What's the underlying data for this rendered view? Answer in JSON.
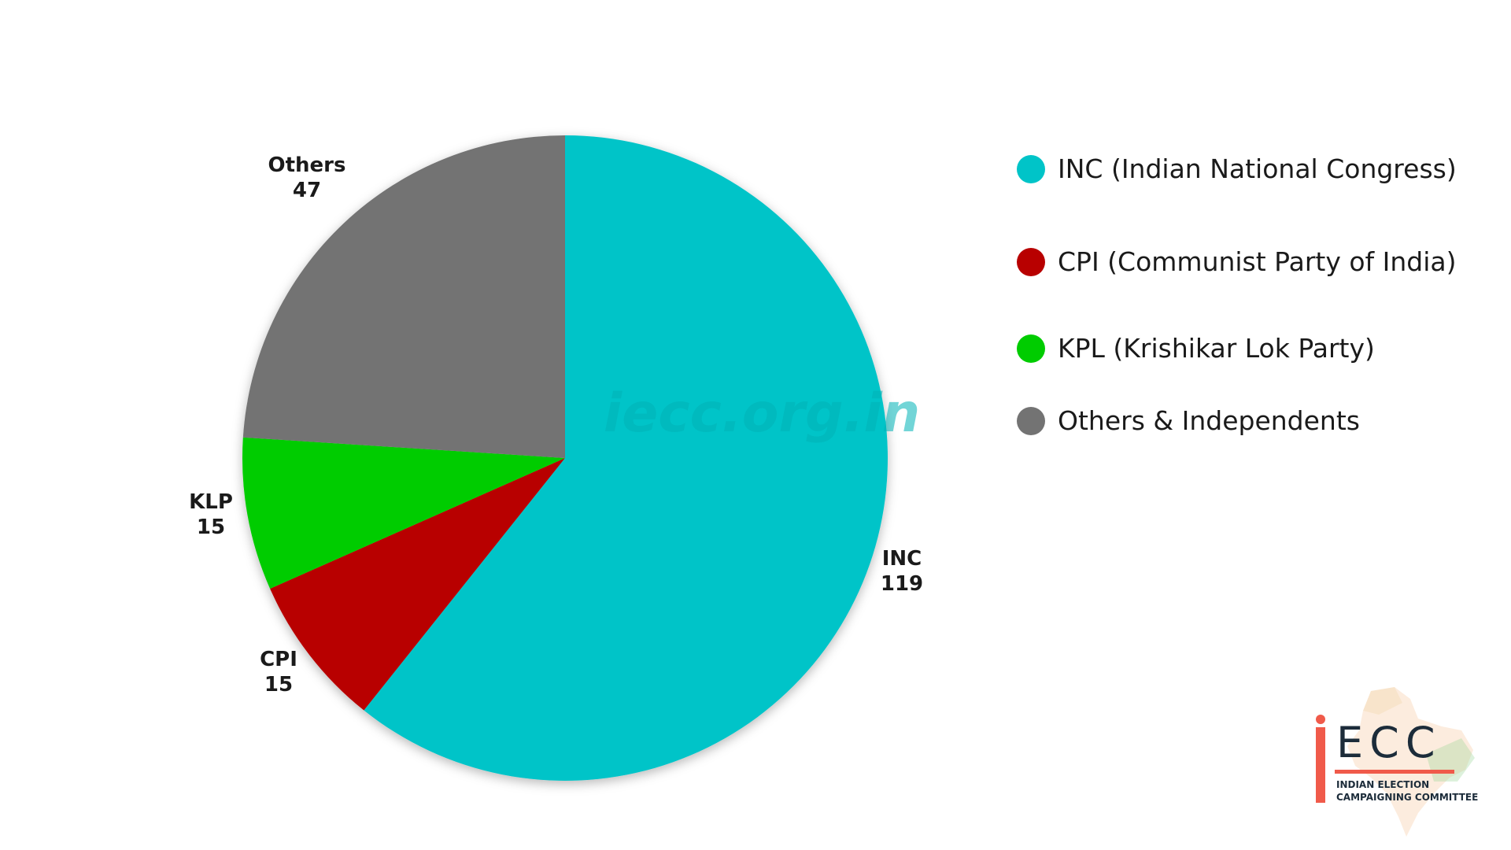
{
  "chart_data": {
    "type": "pie",
    "title": "",
    "slices": [
      {
        "label": "INC",
        "value": 119,
        "color": "#00c4c8",
        "label_text": "INC",
        "value_text": "119"
      },
      {
        "label": "CPI",
        "value": 15,
        "color": "#b80000",
        "label_text": "CPI",
        "value_text": "15"
      },
      {
        "label": "KLP",
        "value": 15,
        "color": "#00cc00",
        "label_text": "KLP",
        "value_text": "15"
      },
      {
        "label": "Others",
        "value": 47,
        "color": "#737373",
        "label_text": "Others",
        "value_text": "47"
      }
    ],
    "legend_placement": "right",
    "legend": [
      {
        "text": "INC (Indian National Congress)",
        "color": "#00c4c8"
      },
      {
        "text": "CPI (Communist Party of India)",
        "color": "#b80000"
      },
      {
        "text": "KPL (Krishikar Lok Party)",
        "color": "#00cc00"
      },
      {
        "text": "Others & Independents",
        "color": "#737373"
      }
    ]
  },
  "watermark": "iecc.org.in",
  "logo": {
    "letters": "ECC",
    "line1": "INDIAN ELECTION",
    "line2": "CAMPAIGNING COMMITTEE",
    "accent_color": "#f05a4a"
  }
}
